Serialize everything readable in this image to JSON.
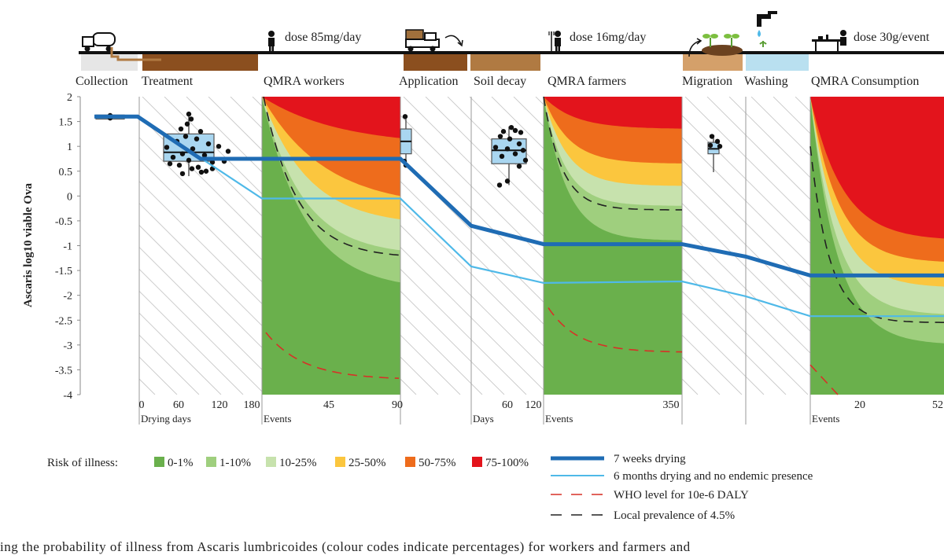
{
  "y_axis_label": "Ascaris  log10 viable Ova",
  "stages": [
    {
      "key": "collection",
      "label": "Collection"
    },
    {
      "key": "treatment",
      "label": "Treatment"
    },
    {
      "key": "qmra_workers",
      "label": "QMRA workers",
      "dose": "dose 85mg/day"
    },
    {
      "key": "application",
      "label": "Application"
    },
    {
      "key": "soil_decay",
      "label": "Soil decay"
    },
    {
      "key": "qmra_farmers",
      "label": "QMRA farmers",
      "dose": "dose 16mg/day"
    },
    {
      "key": "migration",
      "label": "Migration"
    },
    {
      "key": "washing",
      "label": "Washing"
    },
    {
      "key": "qmra_consumption",
      "label": "QMRA Consumption",
      "dose": "dose 30g/event"
    }
  ],
  "sub_axes": {
    "drying": {
      "label": "Drying days",
      "ticks": [
        "0",
        "60",
        "120",
        "180"
      ]
    },
    "workers": {
      "label": "Events",
      "ticks": [
        "45",
        "90"
      ]
    },
    "soil": {
      "label": "Days",
      "ticks": [
        "60",
        "120"
      ]
    },
    "farmers": {
      "label": "Events",
      "ticks": [
        "350"
      ]
    },
    "consumption": {
      "label": "Events",
      "ticks": [
        "20",
        "52"
      ]
    }
  },
  "risk_legend": {
    "title": "Risk of illness:",
    "items": [
      {
        "label": "0-1%",
        "color": "#6ab04c"
      },
      {
        "label": "1-10%",
        "color": "#9fcf7e"
      },
      {
        "label": "10-25%",
        "color": "#c7e2ad"
      },
      {
        "label": "25-50%",
        "color": "#fbc63e"
      },
      {
        "label": "50-75%",
        "color": "#ee6c1c"
      },
      {
        "label": "75-100%",
        "color": "#e3141c"
      }
    ]
  },
  "line_legend": [
    {
      "label": "7 weeks  drying",
      "color": "#1f6cb4",
      "style": "thick"
    },
    {
      "label": "6 months drying and no endemic presence",
      "color": "#4fb9e8",
      "style": "thin"
    },
    {
      "label": "WHO level for 10e-6 DALY",
      "color": "#d73127",
      "style": "dash"
    },
    {
      "label": "Local prevalence of 4.5%",
      "color": "#222222",
      "style": "dash"
    }
  ],
  "chart_data": {
    "type": "line",
    "ylim": [
      -4,
      2
    ],
    "yticks": [
      "2",
      "1.5",
      "1",
      "0.5",
      "0",
      "-0.5",
      "-1",
      "-1.5",
      "-2",
      "-2.5",
      "-3",
      "-3.5",
      "-4"
    ],
    "series": [
      {
        "name": "7 weeks  drying",
        "values": [
          1.6,
          1.6,
          0.75,
          0.75,
          0.75,
          -0.6,
          -0.97,
          -0.97,
          -1.22,
          -1.6,
          -1.6
        ]
      },
      {
        "name": "6 months drying and no endemic presence",
        "values": [
          1.58,
          1.58,
          -0.05,
          -0.05,
          -1.42,
          -1.75,
          -1.72,
          -2.02,
          -2.42,
          -2.42
        ]
      }
    ]
  },
  "caption": "ing the probability of illness from Ascaris lumbricoides (colour codes indicate percentages) for workers and farmers and"
}
